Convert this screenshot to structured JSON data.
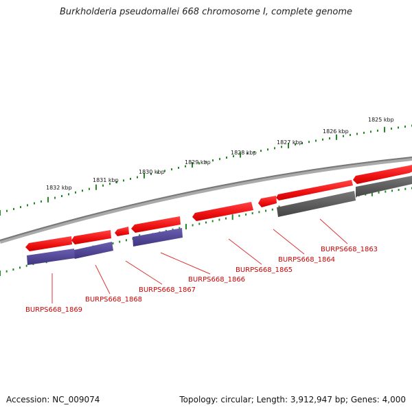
{
  "title": "Burkholderia pseudomallei 668 chromosome I, complete genome",
  "footer": {
    "accession": "Accession: NC_009074",
    "summary": "Topology: circular; Length: 3,912,947 bp; Genes: 4,000"
  },
  "colors": {
    "forward_gene": "#ee1111",
    "reverse_gene_purple": "#4a3f8c",
    "reverse_gene_gray": "#555555",
    "backbone": "#888888",
    "ticks": "#228822",
    "labels": "#cc0000"
  },
  "scale_labels": [
    "1825 kbp",
    "1826 kbp",
    "1827 kbp",
    "1828 kbp",
    "1829 kbp",
    "1830 kbp",
    "1831 kbp",
    "1832 kbp"
  ],
  "genes": [
    {
      "name": "BURPS668_1863",
      "strand": "reverse",
      "color": "gray"
    },
    {
      "name": "BURPS668_1864",
      "strand": "forward",
      "color": "red"
    },
    {
      "name": "BURPS668_1865",
      "strand": "forward",
      "color": "red"
    },
    {
      "name": "BURPS668_1866",
      "strand": "reverse",
      "color": "purple"
    },
    {
      "name": "BURPS668_1867",
      "strand": "forward",
      "color": "red"
    },
    {
      "name": "BURPS668_1868",
      "strand": "reverse",
      "color": "purple"
    },
    {
      "name": "BURPS668_1869",
      "strand": "reverse",
      "color": "purple"
    }
  ]
}
